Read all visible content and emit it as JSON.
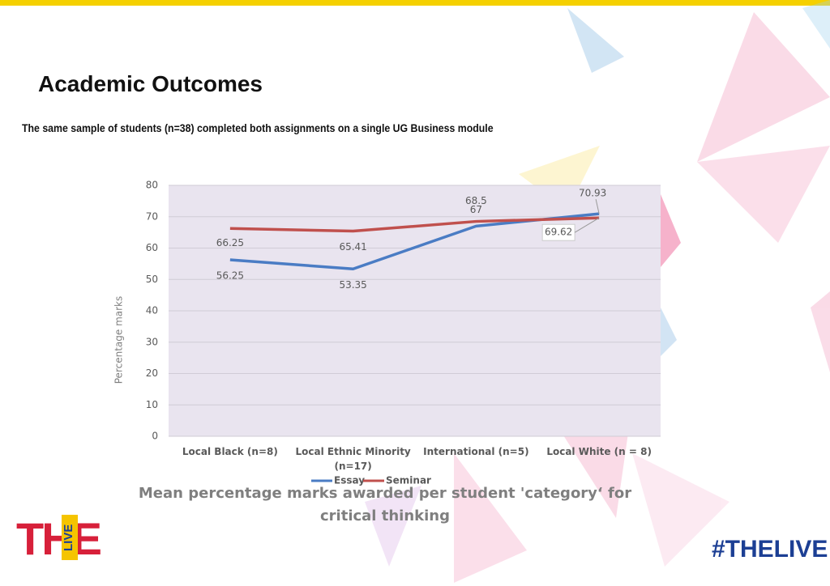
{
  "chart_data": {
    "type": "line",
    "title": "Academic Outcomes",
    "subtitle": "The same sample of students (n=38) completed both assignments on a single UG Business module",
    "caption": "Mean percentage marks awarded per student 'category‘ for critical thinking",
    "y_label": "Percentage marks",
    "categories": [
      "Local Black  (n=8)",
      "Local Ethnic Minority (n=17)",
      "International  (n=5)",
      "Local White  (n = 8)"
    ],
    "series": [
      {
        "name": "Essay",
        "color": "#4a7cc4",
        "values": [
          56.25,
          53.35,
          67,
          70.93
        ]
      },
      {
        "name": "Seminar",
        "color": "#c0504d",
        "values": [
          66.25,
          65.41,
          68.5,
          69.62
        ]
      }
    ],
    "ylim": [
      0,
      80
    ],
    "yticks": [
      0,
      10,
      20,
      30,
      40,
      50,
      60,
      70,
      80
    ],
    "grid": true,
    "legend": "bottom"
  },
  "branding": {
    "logo": "THE",
    "logo_side": "LIVE",
    "hashtag": "#THELIVE"
  }
}
